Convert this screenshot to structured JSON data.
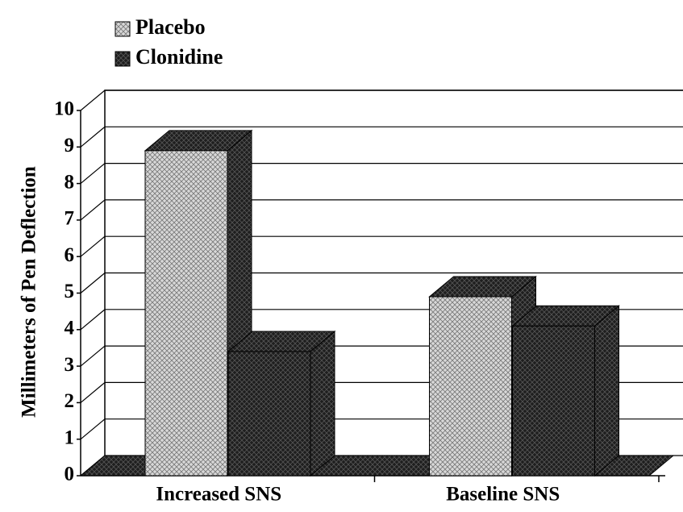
{
  "chart_data": {
    "type": "bar",
    "y_label": "Millimeters of Pen Deflection",
    "categories": [
      "Increased SNS",
      "Baseline SNS"
    ],
    "series": [
      {
        "name": "Placebo",
        "color": "#c4c4c4",
        "values": [
          8.9,
          4.9
        ]
      },
      {
        "name": "Clonidine",
        "color": "#2a2a2a",
        "values": [
          3.4,
          4.1
        ]
      }
    ],
    "ylim": [
      0,
      10
    ],
    "yticks": [
      0,
      1,
      2,
      3,
      4,
      5,
      6,
      7,
      8,
      9,
      10
    ],
    "grid": true
  }
}
